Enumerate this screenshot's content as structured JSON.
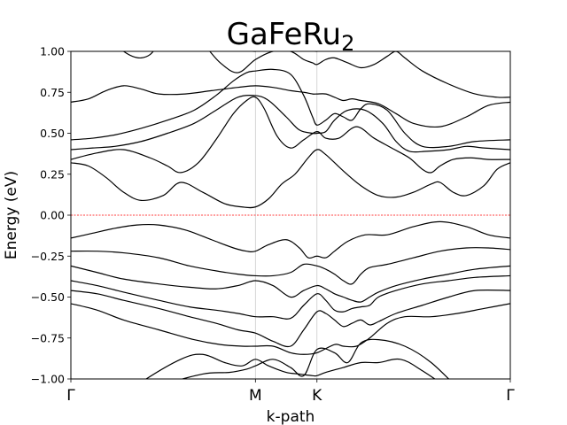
{
  "chart_data": {
    "type": "line",
    "title": "GaFeRu",
    "title_subscript": "2",
    "xlabel": "k-path",
    "ylabel": "Energy (eV)",
    "ylim": [
      -1.0,
      1.0
    ],
    "xlim": [
      0,
      1.0
    ],
    "y_ticks": [
      -1.0,
      -0.75,
      -0.5,
      -0.25,
      0.0,
      0.25,
      0.5,
      0.75,
      1.0
    ],
    "y_tick_labels": [
      "−1.00",
      "−0.75",
      "−0.50",
      "−0.25",
      "0.00",
      "0.25",
      "0.50",
      "0.75",
      "1.00"
    ],
    "k_points": [
      {
        "label": "Γ",
        "x": 0.0
      },
      {
        "label": "M",
        "x": 0.42
      },
      {
        "label": "K",
        "x": 0.56
      },
      {
        "label": "Γ",
        "x": 1.0
      }
    ],
    "fermi_level": 0.0,
    "colors": {
      "bands": "#000000",
      "fermi": "#ff0000",
      "kpoint_lines": "#cccccc"
    },
    "bands": [
      {
        "x": [
          0.0,
          0.08,
          0.16,
          0.25,
          0.3,
          0.35,
          0.39,
          0.42,
          0.45,
          0.49,
          0.52,
          0.55,
          0.56,
          0.58,
          0.62,
          0.66,
          0.7,
          0.75,
          0.8,
          0.88,
          0.95,
          1.0
        ],
        "y": [
          -1.3,
          -1.18,
          -1.02,
          -0.88,
          -0.85,
          -0.9,
          -0.92,
          -0.88,
          -0.92,
          -0.96,
          -0.97,
          -0.98,
          -0.98,
          -0.96,
          -0.93,
          -0.9,
          -0.9,
          -0.88,
          -0.95,
          -1.1,
          -1.25,
          -1.3
        ]
      },
      {
        "x": [
          0.0,
          0.1,
          0.2,
          0.3,
          0.36,
          0.4,
          0.42,
          0.46,
          0.5,
          0.53,
          0.56,
          0.6,
          0.63,
          0.66,
          0.7,
          0.76,
          0.82,
          0.9,
          1.0
        ],
        "y": [
          -1.4,
          -1.2,
          -1.05,
          -0.97,
          -0.96,
          -0.94,
          -0.92,
          -0.88,
          -0.93,
          -0.98,
          -0.82,
          -0.84,
          -0.9,
          -0.78,
          -0.76,
          -0.8,
          -0.9,
          -1.1,
          -1.3
        ]
      },
      {
        "x": [
          0.0,
          0.06,
          0.12,
          0.2,
          0.28,
          0.34,
          0.39,
          0.42,
          0.46,
          0.5,
          0.53,
          0.56,
          0.6,
          0.62,
          0.65,
          0.68,
          0.72,
          0.76,
          0.82,
          0.88,
          0.94,
          1.0
        ],
        "y": [
          -0.54,
          -0.58,
          -0.64,
          -0.7,
          -0.76,
          -0.79,
          -0.8,
          -0.8,
          -0.8,
          -0.84,
          -0.85,
          -0.84,
          -0.79,
          -0.8,
          -0.8,
          -0.75,
          -0.66,
          -0.62,
          -0.62,
          -0.6,
          -0.57,
          -0.54
        ]
      },
      {
        "x": [
          0.0,
          0.06,
          0.12,
          0.2,
          0.27,
          0.33,
          0.38,
          0.42,
          0.46,
          0.5,
          0.53,
          0.56,
          0.58,
          0.6,
          0.62,
          0.64,
          0.66,
          0.68,
          0.7,
          0.74,
          0.8,
          0.86,
          0.92,
          1.0
        ],
        "y": [
          -0.46,
          -0.48,
          -0.52,
          -0.57,
          -0.62,
          -0.66,
          -0.7,
          -0.72,
          -0.77,
          -0.8,
          -0.7,
          -0.59,
          -0.6,
          -0.64,
          -0.68,
          -0.66,
          -0.64,
          -0.67,
          -0.65,
          -0.6,
          -0.55,
          -0.5,
          -0.46,
          -0.46
        ]
      },
      {
        "x": [
          0.0,
          0.06,
          0.12,
          0.2,
          0.27,
          0.33,
          0.38,
          0.42,
          0.46,
          0.5,
          0.53,
          0.56,
          0.58,
          0.6,
          0.62,
          0.64,
          0.66,
          0.68,
          0.7,
          0.74,
          0.8,
          0.86,
          0.92,
          1.0
        ],
        "y": [
          -0.4,
          -0.43,
          -0.47,
          -0.52,
          -0.56,
          -0.58,
          -0.6,
          -0.62,
          -0.62,
          -0.63,
          -0.55,
          -0.48,
          -0.52,
          -0.58,
          -0.59,
          -0.57,
          -0.56,
          -0.55,
          -0.5,
          -0.46,
          -0.42,
          -0.4,
          -0.38,
          -0.37
        ]
      },
      {
        "x": [
          0.0,
          0.06,
          0.12,
          0.2,
          0.27,
          0.33,
          0.38,
          0.42,
          0.46,
          0.5,
          0.53,
          0.56,
          0.58,
          0.6,
          0.62,
          0.64,
          0.66,
          0.68,
          0.7,
          0.74,
          0.8,
          0.86,
          0.92,
          1.0
        ],
        "y": [
          -0.31,
          -0.35,
          -0.39,
          -0.42,
          -0.44,
          -0.45,
          -0.43,
          -0.4,
          -0.43,
          -0.5,
          -0.46,
          -0.43,
          -0.45,
          -0.48,
          -0.5,
          -0.52,
          -0.53,
          -0.5,
          -0.47,
          -0.43,
          -0.39,
          -0.36,
          -0.33,
          -0.31
        ]
      },
      {
        "x": [
          0.0,
          0.06,
          0.12,
          0.2,
          0.27,
          0.33,
          0.38,
          0.42,
          0.46,
          0.5,
          0.53,
          0.56,
          0.58,
          0.6,
          0.62,
          0.64,
          0.66,
          0.68,
          0.72,
          0.78,
          0.84,
          0.9,
          0.95,
          1.0
        ],
        "y": [
          -0.22,
          -0.22,
          -0.23,
          -0.26,
          -0.31,
          -0.34,
          -0.36,
          -0.37,
          -0.37,
          -0.35,
          -0.3,
          -0.31,
          -0.33,
          -0.36,
          -0.4,
          -0.42,
          -0.36,
          -0.32,
          -0.3,
          -0.26,
          -0.22,
          -0.2,
          -0.2,
          -0.21
        ]
      },
      {
        "x": [
          0.0,
          0.05,
          0.1,
          0.15,
          0.2,
          0.26,
          0.32,
          0.37,
          0.4,
          0.42,
          0.45,
          0.49,
          0.52,
          0.54,
          0.56,
          0.58,
          0.6,
          0.63,
          0.67,
          0.72,
          0.78,
          0.84,
          0.9,
          0.95,
          1.0
        ],
        "y": [
          -0.14,
          -0.11,
          -0.08,
          -0.06,
          -0.06,
          -0.09,
          -0.15,
          -0.2,
          -0.22,
          -0.22,
          -0.18,
          -0.15,
          -0.2,
          -0.26,
          -0.25,
          -0.26,
          -0.22,
          -0.16,
          -0.12,
          -0.12,
          -0.07,
          -0.04,
          -0.07,
          -0.12,
          -0.14
        ]
      },
      {
        "x": [
          0.0,
          0.04,
          0.08,
          0.12,
          0.16,
          0.21,
          0.25,
          0.3,
          0.35,
          0.39,
          0.42,
          0.45,
          0.48,
          0.51,
          0.54,
          0.56,
          0.58,
          0.62,
          0.66,
          0.7,
          0.74,
          0.78,
          0.82,
          0.84,
          0.87,
          0.9,
          0.94,
          0.97,
          1.0
        ],
        "y": [
          0.32,
          0.3,
          0.23,
          0.14,
          0.09,
          0.12,
          0.2,
          0.14,
          0.07,
          0.05,
          0.05,
          0.1,
          0.19,
          0.25,
          0.35,
          0.4,
          0.37,
          0.27,
          0.18,
          0.12,
          0.11,
          0.14,
          0.19,
          0.2,
          0.14,
          0.12,
          0.18,
          0.28,
          0.32
        ]
      },
      {
        "x": [
          0.0,
          0.06,
          0.12,
          0.18,
          0.22,
          0.25,
          0.29,
          0.33,
          0.37,
          0.4,
          0.42,
          0.44,
          0.47,
          0.5,
          0.53,
          0.56,
          0.58,
          0.61,
          0.65,
          0.69,
          0.73,
          0.77,
          0.8,
          0.82,
          0.84,
          0.87,
          0.91,
          0.95,
          1.0
        ],
        "y": [
          0.34,
          0.38,
          0.4,
          0.35,
          0.3,
          0.26,
          0.32,
          0.46,
          0.62,
          0.7,
          0.72,
          0.65,
          0.48,
          0.41,
          0.46,
          0.51,
          0.47,
          0.47,
          0.54,
          0.47,
          0.41,
          0.35,
          0.28,
          0.26,
          0.3,
          0.34,
          0.35,
          0.34,
          0.34
        ]
      },
      {
        "x": [
          0.0,
          0.05,
          0.1,
          0.16,
          0.22,
          0.28,
          0.33,
          0.38,
          0.42,
          0.45,
          0.49,
          0.52,
          0.55,
          0.56,
          0.58,
          0.6,
          0.63,
          0.67,
          0.71,
          0.74,
          0.77,
          0.81,
          0.86,
          0.9,
          0.94,
          1.0
        ],
        "y": [
          0.4,
          0.41,
          0.42,
          0.45,
          0.5,
          0.56,
          0.64,
          0.72,
          0.73,
          0.7,
          0.6,
          0.52,
          0.5,
          0.5,
          0.51,
          0.58,
          0.64,
          0.64,
          0.56,
          0.45,
          0.39,
          0.39,
          0.4,
          0.42,
          0.41,
          0.4
        ]
      },
      {
        "x": [
          0.0,
          0.05,
          0.1,
          0.16,
          0.22,
          0.28,
          0.33,
          0.37,
          0.4,
          0.42,
          0.46,
          0.5,
          0.53,
          0.55,
          0.56,
          0.58,
          0.6,
          0.62,
          0.64,
          0.66,
          0.68,
          0.72,
          0.76,
          0.8,
          0.86,
          0.92,
          1.0
        ],
        "y": [
          0.46,
          0.47,
          0.49,
          0.53,
          0.58,
          0.64,
          0.73,
          0.82,
          0.87,
          0.88,
          0.89,
          0.86,
          0.73,
          0.6,
          0.55,
          0.58,
          0.62,
          0.6,
          0.58,
          0.65,
          0.68,
          0.64,
          0.5,
          0.42,
          0.42,
          0.45,
          0.46
        ]
      },
      {
        "x": [
          0.0,
          0.04,
          0.08,
          0.12,
          0.16,
          0.2,
          0.26,
          0.32,
          0.38,
          0.42,
          0.46,
          0.5,
          0.53,
          0.55,
          0.56,
          0.58,
          0.6,
          0.62,
          0.64,
          0.66,
          0.7,
          0.74,
          0.78,
          0.84,
          0.9,
          0.95,
          1.0
        ],
        "y": [
          0.69,
          0.71,
          0.76,
          0.79,
          0.77,
          0.74,
          0.74,
          0.76,
          0.78,
          0.79,
          0.78,
          0.76,
          0.75,
          0.74,
          0.74,
          0.74,
          0.72,
          0.7,
          0.71,
          0.7,
          0.68,
          0.62,
          0.56,
          0.54,
          0.6,
          0.67,
          0.69
        ]
      },
      {
        "x": [
          0.0,
          0.04,
          0.08,
          0.12,
          0.14,
          0.16,
          0.18,
          0.2,
          0.22,
          0.26,
          0.3,
          0.34,
          0.38,
          0.42,
          0.46,
          0.5,
          0.53,
          0.55,
          0.56,
          0.58,
          0.6,
          0.63,
          0.66,
          0.69,
          0.72,
          0.74,
          0.76,
          0.8,
          0.86,
          0.92,
          0.97,
          1.0
        ],
        "y": [
          1.2,
          1.16,
          1.08,
          1.0,
          0.97,
          0.96,
          0.98,
          1.04,
          1.1,
          1.15,
          1.05,
          0.93,
          0.87,
          0.95,
          1.0,
          1.0,
          0.95,
          0.93,
          0.92,
          0.95,
          0.96,
          0.93,
          0.9,
          0.92,
          0.97,
          1.0,
          0.96,
          0.88,
          0.8,
          0.74,
          0.72,
          0.72
        ]
      },
      {
        "x": [
          0.0,
          0.1,
          0.2,
          0.3,
          0.36,
          0.4,
          0.42,
          0.46,
          0.5,
          0.53,
          0.56,
          0.6,
          0.63,
          0.67,
          0.72,
          0.8,
          0.9,
          1.0
        ],
        "y": [
          1.4,
          1.3,
          1.2,
          1.1,
          1.04,
          1.01,
          1.0,
          1.02,
          1.04,
          1.02,
          1.0,
          1.03,
          1.05,
          1.1,
          1.15,
          1.2,
          1.3,
          1.4
        ]
      }
    ]
  }
}
